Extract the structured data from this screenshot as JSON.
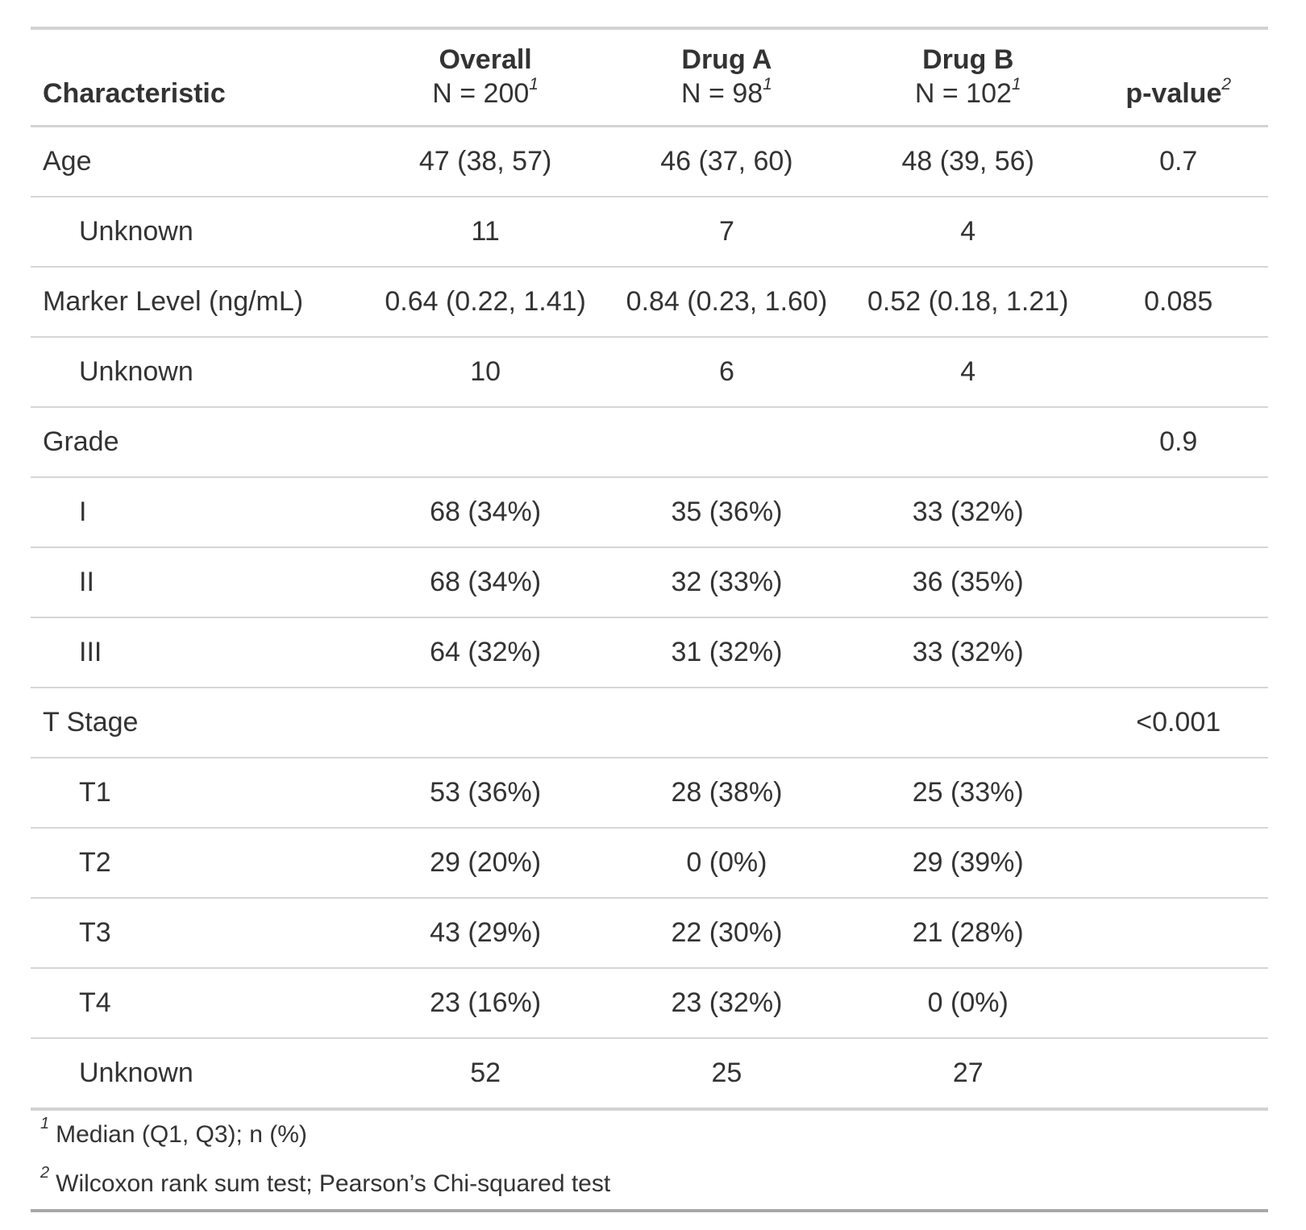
{
  "colors": {
    "text": "#333333",
    "border_light": "#d6d6d6",
    "border_top": "#d3d3d3",
    "border_bottom": "#a8a8a8",
    "background": "#ffffff"
  },
  "chart_data": {
    "type": "table",
    "title": "",
    "columns": [
      {
        "label": "Characteristic",
        "sublabel": "",
        "footnote_ref": ""
      },
      {
        "label": "Overall",
        "sublabel": "N = 200",
        "footnote_ref": "1"
      },
      {
        "label": "Drug A",
        "sublabel": "N = 98",
        "footnote_ref": "1"
      },
      {
        "label": "Drug B",
        "sublabel": "N = 102",
        "footnote_ref": "1"
      },
      {
        "label": "p-value",
        "sublabel": "",
        "footnote_ref": "2"
      }
    ],
    "rows": [
      {
        "label": "Age",
        "indent": false,
        "overall": "47 (38, 57)",
        "drug_a": "46 (37, 60)",
        "drug_b": "48 (39, 56)",
        "p_value": "0.7"
      },
      {
        "label": "Unknown",
        "indent": true,
        "overall": "11",
        "drug_a": "7",
        "drug_b": "4",
        "p_value": ""
      },
      {
        "label": "Marker Level (ng/mL)",
        "indent": false,
        "overall": "0.64 (0.22, 1.41)",
        "drug_a": "0.84 (0.23, 1.60)",
        "drug_b": "0.52 (0.18, 1.21)",
        "p_value": "0.085"
      },
      {
        "label": "Unknown",
        "indent": true,
        "overall": "10",
        "drug_a": "6",
        "drug_b": "4",
        "p_value": ""
      },
      {
        "label": "Grade",
        "indent": false,
        "overall": "",
        "drug_a": "",
        "drug_b": "",
        "p_value": "0.9"
      },
      {
        "label": "I",
        "indent": true,
        "overall": "68 (34%)",
        "drug_a": "35 (36%)",
        "drug_b": "33 (32%)",
        "p_value": ""
      },
      {
        "label": "II",
        "indent": true,
        "overall": "68 (34%)",
        "drug_a": "32 (33%)",
        "drug_b": "36 (35%)",
        "p_value": ""
      },
      {
        "label": "III",
        "indent": true,
        "overall": "64 (32%)",
        "drug_a": "31 (32%)",
        "drug_b": "33 (32%)",
        "p_value": ""
      },
      {
        "label": "T Stage",
        "indent": false,
        "overall": "",
        "drug_a": "",
        "drug_b": "",
        "p_value": "<0.001"
      },
      {
        "label": "T1",
        "indent": true,
        "overall": "53 (36%)",
        "drug_a": "28 (38%)",
        "drug_b": "25 (33%)",
        "p_value": ""
      },
      {
        "label": "T2",
        "indent": true,
        "overall": "29 (20%)",
        "drug_a": "0 (0%)",
        "drug_b": "29 (39%)",
        "p_value": ""
      },
      {
        "label": "T3",
        "indent": true,
        "overall": "43 (29%)",
        "drug_a": "22 (30%)",
        "drug_b": "21 (28%)",
        "p_value": ""
      },
      {
        "label": "T4",
        "indent": true,
        "overall": "23 (16%)",
        "drug_a": "23 (32%)",
        "drug_b": "0 (0%)",
        "p_value": ""
      },
      {
        "label": "Unknown",
        "indent": true,
        "overall": "52",
        "drug_a": "25",
        "drug_b": "27",
        "p_value": ""
      }
    ],
    "footnotes": [
      {
        "ref": "1",
        "text": "Median (Q1, Q3); n (%)"
      },
      {
        "ref": "2",
        "text": "Wilcoxon rank sum test; Pearson’s Chi-squared test"
      }
    ]
  }
}
